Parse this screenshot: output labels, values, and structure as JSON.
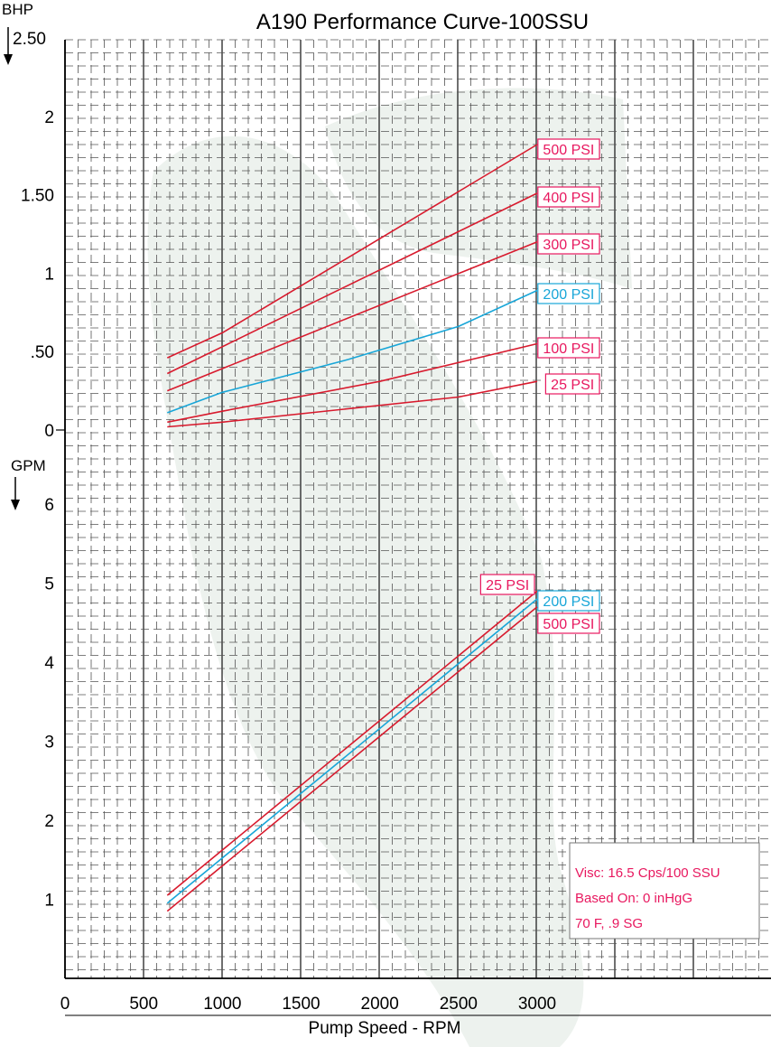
{
  "colors": {
    "red": "#d81b2e",
    "blue": "#18a6d8",
    "label_red": "#e8185f",
    "watermark": "#edf2ee"
  },
  "chart_data": {
    "type": "line",
    "title": "A190 Performance Curve-100SSU",
    "xlabel": "Pump Speed - RPM",
    "x_ticks": [
      "0",
      "500",
      "1000",
      "1500",
      "2000",
      "2500",
      "3000"
    ],
    "xlim": [
      0,
      3000
    ],
    "note_lines": [
      "Visc: 16.5 Cps/100 SSU",
      "Based On: 0 inHgG",
      "70 F, .9 SG"
    ],
    "panels": [
      {
        "id": "bhp",
        "ylabel": "BHP",
        "ylim": [
          0,
          2.5
        ],
        "y_ticks": [
          {
            "v": 0,
            "t": "0"
          },
          {
            "v": 0.5,
            "t": ".50"
          },
          {
            "v": 1,
            "t": "1"
          },
          {
            "v": 1.5,
            "t": "1.50"
          },
          {
            "v": 2,
            "t": "2"
          },
          {
            "v": 2.5,
            "t": "2.50"
          }
        ],
        "series": [
          {
            "name": "500 PSI",
            "color": "red",
            "x": [
              650,
              1000,
              3000
            ],
            "y": [
              0.46,
              0.62,
              1.82
            ]
          },
          {
            "name": "400 PSI",
            "color": "red",
            "x": [
              650,
              3000
            ],
            "y": [
              0.36,
              1.51
            ]
          },
          {
            "name": "300 PSI",
            "color": "red",
            "x": [
              650,
              3000
            ],
            "y": [
              0.25,
              1.2
            ]
          },
          {
            "name": "200 PSI",
            "color": "blue",
            "x": [
              650,
              1000,
              1800,
              2500,
              3000
            ],
            "y": [
              0.11,
              0.24,
              0.45,
              0.66,
              0.89
            ]
          },
          {
            "name": "100 PSI",
            "color": "red",
            "x": [
              650,
              1000,
              2000,
              3000
            ],
            "y": [
              0.05,
              0.12,
              0.31,
              0.55
            ]
          },
          {
            "name": "25 PSI",
            "color": "red",
            "x": [
              650,
              1000,
              2500,
              3000
            ],
            "y": [
              0.02,
              0.05,
              0.21,
              0.31
            ]
          }
        ]
      },
      {
        "id": "gpm",
        "ylabel": "GPM",
        "ylim": [
          0,
          6.5
        ],
        "y_ticks": [
          {
            "v": 1,
            "t": "1"
          },
          {
            "v": 2,
            "t": "2"
          },
          {
            "v": 3,
            "t": "3"
          },
          {
            "v": 4,
            "t": "4"
          },
          {
            "v": 5,
            "t": "5"
          },
          {
            "v": 6,
            "t": "6"
          }
        ],
        "series": [
          {
            "name": "25 PSI",
            "color": "red",
            "x": [
              650,
              3000
            ],
            "y": [
              1.05,
              4.9
            ]
          },
          {
            "name": "200 PSI",
            "color": "blue",
            "x": [
              650,
              3000
            ],
            "y": [
              0.95,
              4.8
            ]
          },
          {
            "name": "500 PSI",
            "color": "red",
            "x": [
              650,
              3000
            ],
            "y": [
              0.85,
              4.7
            ]
          }
        ]
      }
    ]
  }
}
